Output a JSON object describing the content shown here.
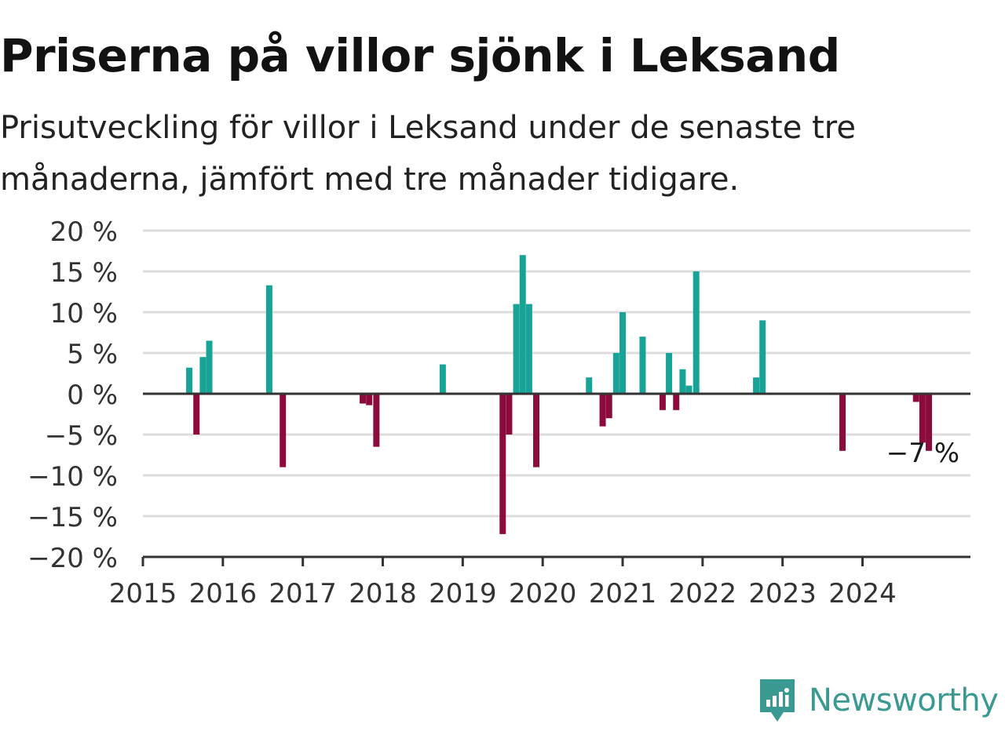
{
  "title": "Priserna på villor sjönk i Leksand",
  "subtitle": "Prisutveckling för villor i Leksand under de senaste tre månaderna, jämfört med tre månader tidigare.",
  "brand": {
    "name": "Newsworthy",
    "icon": "newsworthy-logo-icon",
    "color": "#3a9a92"
  },
  "colors": {
    "positive": "#17a497",
    "negative": "#8c0b3c",
    "grid": "#dddddd",
    "zero_line": "#333333"
  },
  "chart_data": {
    "type": "bar",
    "title": "Priserna på villor sjönk i Leksand",
    "xlim": [
      2015,
      2025.35
    ],
    "ylim": [
      -20,
      20
    ],
    "y_ticks": [
      20,
      15,
      10,
      5,
      0,
      -5,
      -10,
      -15,
      -20
    ],
    "y_tick_labels": [
      "20 %",
      "15 %",
      "10 %",
      "5 %",
      "0 %",
      "−5 %",
      "−10 %",
      "−15 %",
      "−20 %"
    ],
    "x_ticks": [
      2015,
      2016,
      2017,
      2018,
      2019,
      2020,
      2021,
      2022,
      2023,
      2024
    ],
    "x_tick_labels": [
      "2015",
      "2016",
      "2017",
      "2018",
      "2019",
      "2020",
      "2021",
      "2022",
      "2023",
      "2024"
    ],
    "grid": true,
    "annotation": {
      "text": "−7 %",
      "x": 2024.83,
      "y": -7
    },
    "series": [
      {
        "x": [
          2015.58,
          2015.67,
          2015.75,
          2015.83,
          2016.58,
          2016.75,
          2017.75,
          2017.83,
          2017.92,
          2018.75,
          2019.5,
          2019.58,
          2019.67,
          2019.75,
          2019.83,
          2019.92,
          2020.58,
          2020.75,
          2020.83,
          2020.92,
          2021.0,
          2021.25,
          2021.5,
          2021.58,
          2021.67,
          2021.75,
          2021.83,
          2021.92,
          2022.67,
          2022.75,
          2023.75,
          2024.67,
          2024.75,
          2024.83
        ],
        "values": [
          3.2,
          -5,
          4.5,
          6.5,
          13.3,
          -9,
          -1.2,
          -1.4,
          -6.5,
          3.6,
          -17.2,
          -5,
          11,
          17,
          11,
          -9,
          2,
          -4,
          -3,
          5,
          10,
          7,
          -2,
          5,
          -2,
          3,
          1,
          15,
          2,
          9,
          -7,
          -1,
          -6,
          -7
        ]
      }
    ]
  }
}
